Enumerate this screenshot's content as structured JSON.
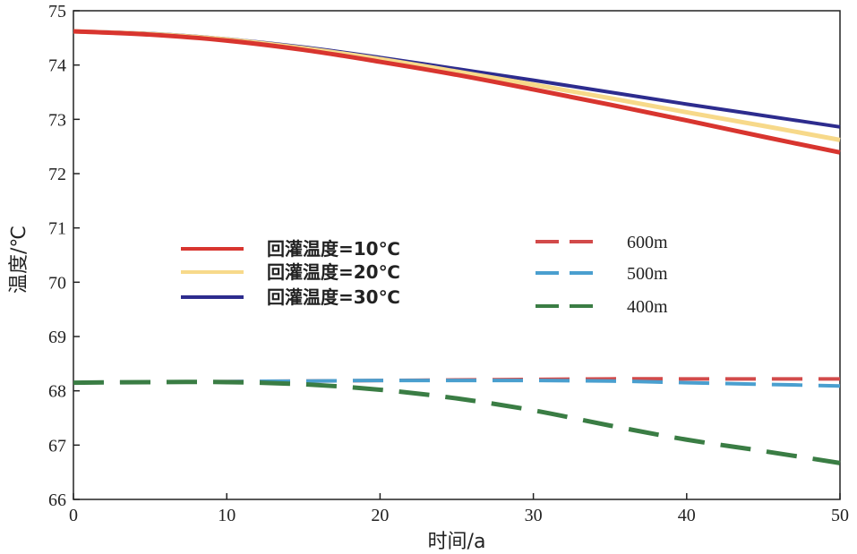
{
  "chart_data": {
    "type": "line",
    "xlabel": "时间/a",
    "ylabel": "温度/℃",
    "xlim": [
      0,
      50
    ],
    "ylim": [
      66,
      75
    ],
    "xticks": [
      0,
      10,
      20,
      30,
      40,
      50
    ],
    "yticks": [
      66,
      67,
      68,
      69,
      70,
      71,
      72,
      73,
      74,
      75
    ],
    "grid": false,
    "legend_solid": [
      {
        "name": "回灌温度=10℃",
        "color": "#d8352f"
      },
      {
        "name": "回灌温度=20℃",
        "color": "#f7d98a"
      },
      {
        "name": "回灌温度=30℃",
        "color": "#2d2c8e"
      }
    ],
    "legend_dashed": [
      {
        "name": "600m",
        "color": "#d24a4a"
      },
      {
        "name": "500m",
        "color": "#4a9fcf"
      },
      {
        "name": "400m",
        "color": "#3a7d44"
      }
    ],
    "x": [
      0,
      5,
      10,
      15,
      20,
      25,
      30,
      35,
      40,
      45,
      50
    ],
    "series": [
      {
        "name": "回灌温度=30℃",
        "style": "solid",
        "color": "#2d2c8e",
        "width": 4,
        "values": [
          74.62,
          74.58,
          74.48,
          74.33,
          74.14,
          73.93,
          73.72,
          73.5,
          73.28,
          73.07,
          72.86
        ]
      },
      {
        "name": "回灌温度=20℃",
        "style": "solid",
        "color": "#f7d98a",
        "width": 5,
        "values": [
          74.62,
          74.57,
          74.47,
          74.31,
          74.11,
          73.88,
          73.64,
          73.39,
          73.13,
          72.88,
          72.62
        ]
      },
      {
        "name": "回灌温度=10℃",
        "style": "solid",
        "color": "#d8352f",
        "width": 5,
        "values": [
          74.62,
          74.56,
          74.45,
          74.28,
          74.06,
          73.82,
          73.55,
          73.27,
          72.98,
          72.68,
          72.39
        ]
      },
      {
        "name": "600m",
        "style": "dashed",
        "color": "#d24a4a",
        "width": 4,
        "values": [
          68.15,
          68.16,
          68.17,
          68.18,
          68.19,
          68.2,
          68.21,
          68.22,
          68.22,
          68.22,
          68.22
        ]
      },
      {
        "name": "500m",
        "style": "dashed",
        "color": "#4a9fcf",
        "width": 4,
        "values": [
          68.15,
          68.16,
          68.17,
          68.18,
          68.19,
          68.19,
          68.19,
          68.18,
          68.15,
          68.12,
          68.09
        ]
      },
      {
        "name": "400m",
        "style": "dashed",
        "color": "#3a7d44",
        "width": 5,
        "values": [
          68.15,
          68.16,
          68.16,
          68.12,
          68.02,
          67.86,
          67.64,
          67.36,
          67.1,
          66.89,
          66.67
        ]
      }
    ]
  }
}
